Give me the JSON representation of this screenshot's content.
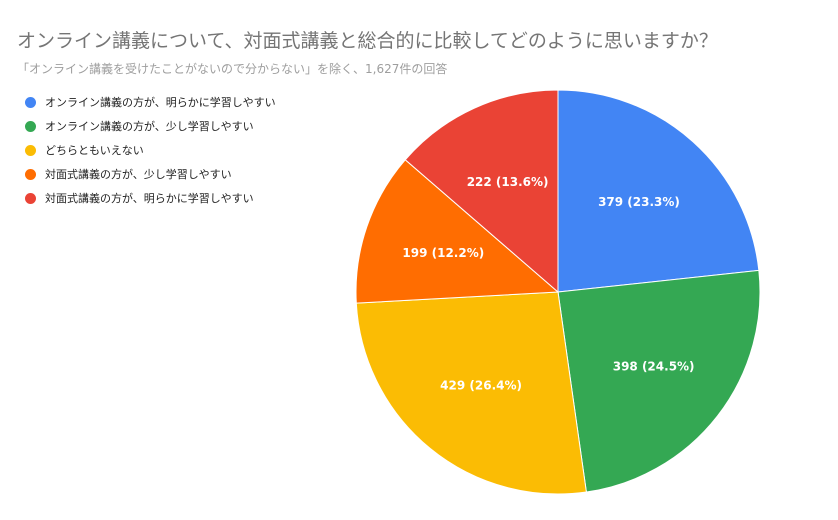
{
  "chart_data": {
    "type": "pie",
    "title": "オンライン講義について、対面式講義と総合的に比較してどのように思いますか？",
    "subtitle": "「オンライン講義を受けたことがないので分からない」を除く、1,627件の回答",
    "legend_position": "left",
    "slices": [
      {
        "name": "オンライン講義の方が、明らかに学習しやすい",
        "value": 379,
        "label": "379 (23.3%)",
        "color": "#4285F4"
      },
      {
        "name": "オンライン講義の方が、少し学習しやすい",
        "value": 398,
        "label": "398 (24.5%)",
        "color": "#34A853"
      },
      {
        "name": "どちらともいえない",
        "value": 429,
        "label": "429 (26.4%)",
        "color": "#FBBC04"
      },
      {
        "name": "対面式講義の方が、少し学習しやすい",
        "value": 199,
        "label": "199 (12.2%)",
        "color": "#FF6D01"
      },
      {
        "name": "対面式講義の方が、明らかに学習しやすい",
        "value": 222,
        "label": "222 (13.6%)",
        "color": "#EA4335"
      }
    ]
  }
}
